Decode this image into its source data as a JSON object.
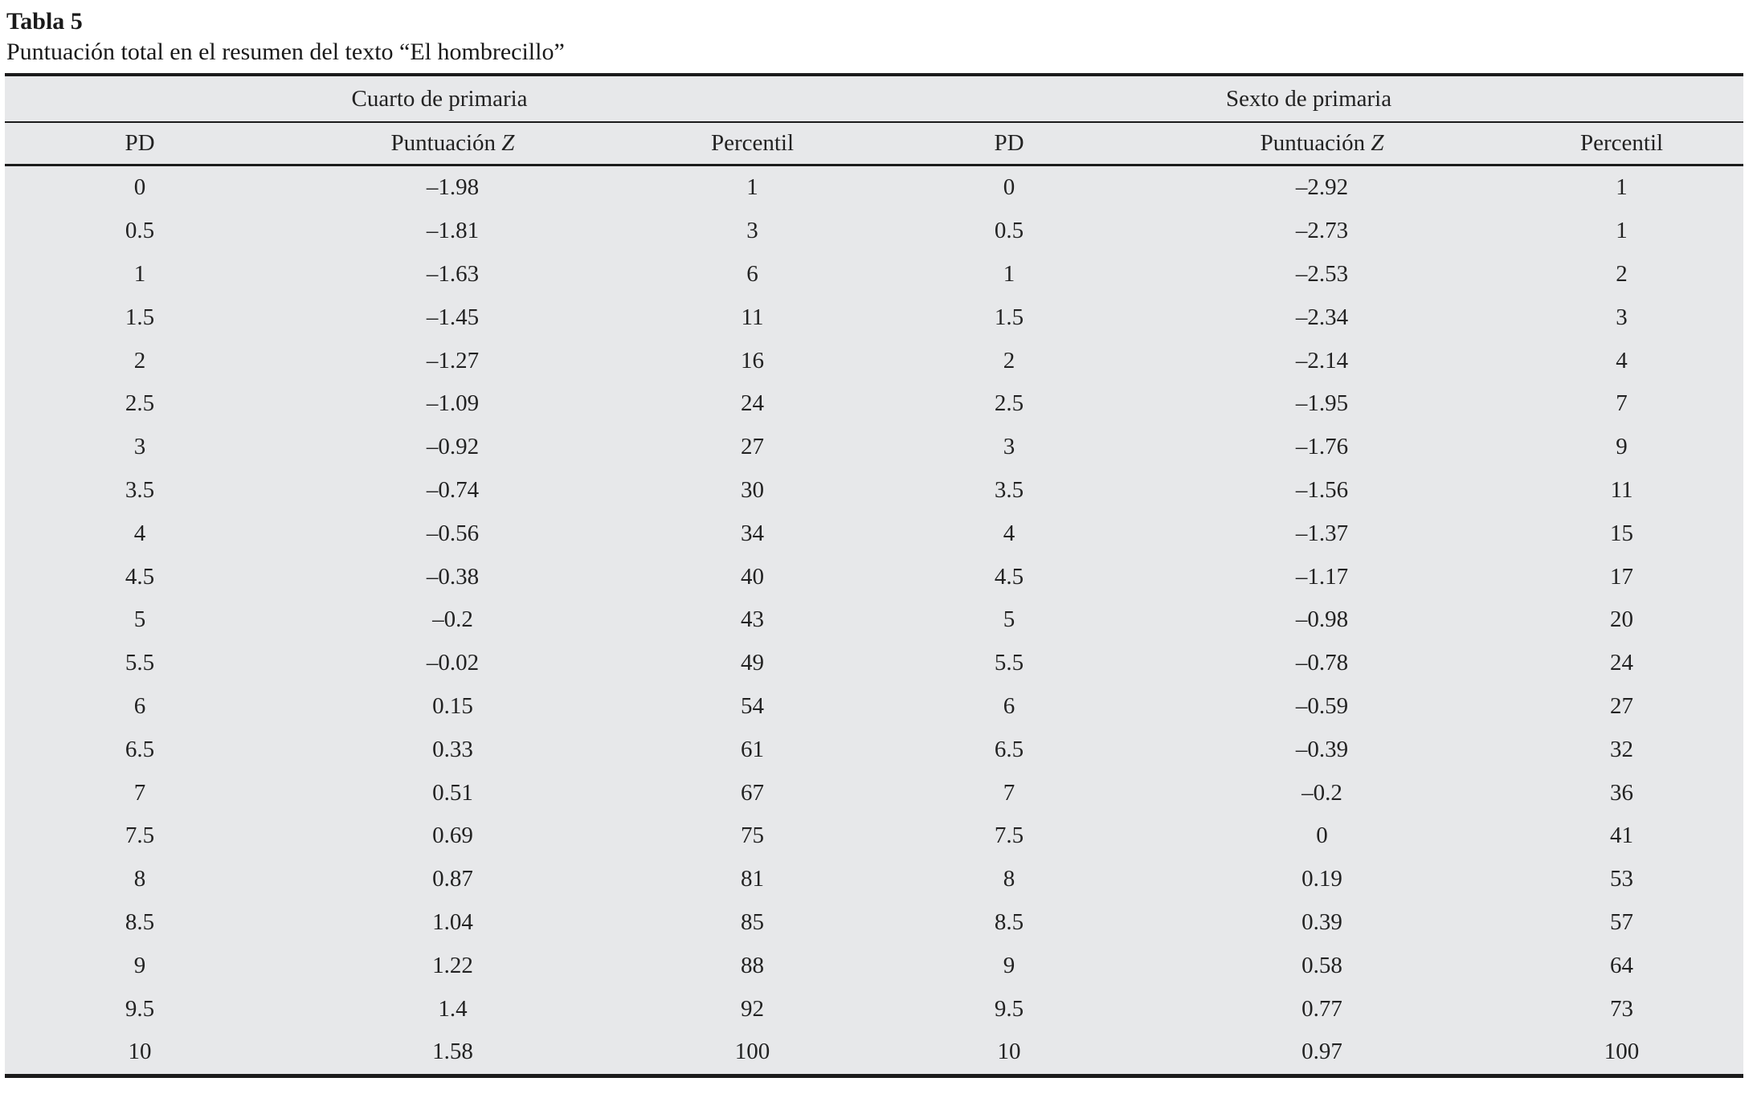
{
  "table": {
    "label": "Tabla 5",
    "caption": "Puntuación total en el resumen del texto “El hombrecillo”",
    "groups": [
      {
        "title": "Cuarto de primaria",
        "columns": [
          "PD",
          "Puntuación Z",
          "Percentil"
        ]
      },
      {
        "title": "Sexto de primaria",
        "columns": [
          "PD",
          "Puntuación Z",
          "Percentil"
        ]
      }
    ],
    "rows": [
      [
        "0",
        "–1.98",
        "1",
        "0",
        "–2.92",
        "1"
      ],
      [
        "0.5",
        "–1.81",
        "3",
        "0.5",
        "–2.73",
        "1"
      ],
      [
        "1",
        "–1.63",
        "6",
        "1",
        "–2.53",
        "2"
      ],
      [
        "1.5",
        "–1.45",
        "11",
        "1.5",
        "–2.34",
        "3"
      ],
      [
        "2",
        "–1.27",
        "16",
        "2",
        "–2.14",
        "4"
      ],
      [
        "2.5",
        "–1.09",
        "24",
        "2.5",
        "–1.95",
        "7"
      ],
      [
        "3",
        "–0.92",
        "27",
        "3",
        "–1.76",
        "9"
      ],
      [
        "3.5",
        "–0.74",
        "30",
        "3.5",
        "–1.56",
        "11"
      ],
      [
        "4",
        "–0.56",
        "34",
        "4",
        "–1.37",
        "15"
      ],
      [
        "4.5",
        "–0.38",
        "40",
        "4.5",
        "–1.17",
        "17"
      ],
      [
        "5",
        "–0.2",
        "43",
        "5",
        "–0.98",
        "20"
      ],
      [
        "5.5",
        "–0.02",
        "49",
        "5.5",
        "–0.78",
        "24"
      ],
      [
        "6",
        "0.15",
        "54",
        "6",
        "–0.59",
        "27"
      ],
      [
        "6.5",
        "0.33",
        "61",
        "6.5",
        "–0.39",
        "32"
      ],
      [
        "7",
        "0.51",
        "67",
        "7",
        "–0.2",
        "36"
      ],
      [
        "7.5",
        "0.69",
        "75",
        "7.5",
        "0",
        "41"
      ],
      [
        "8",
        "0.87",
        "81",
        "8",
        "0.19",
        "53"
      ],
      [
        "8.5",
        "1.04",
        "85",
        "8.5",
        "0.39",
        "57"
      ],
      [
        "9",
        "1.22",
        "88",
        "9",
        "0.58",
        "64"
      ],
      [
        "9.5",
        "1.4",
        "92",
        "9.5",
        "0.77",
        "73"
      ],
      [
        "10",
        "1.58",
        "100",
        "10",
        "0.97",
        "100"
      ]
    ],
    "colors": {
      "band_background": "#e7e8ea",
      "rule": "#1b1b1b",
      "text": "#222222"
    }
  }
}
